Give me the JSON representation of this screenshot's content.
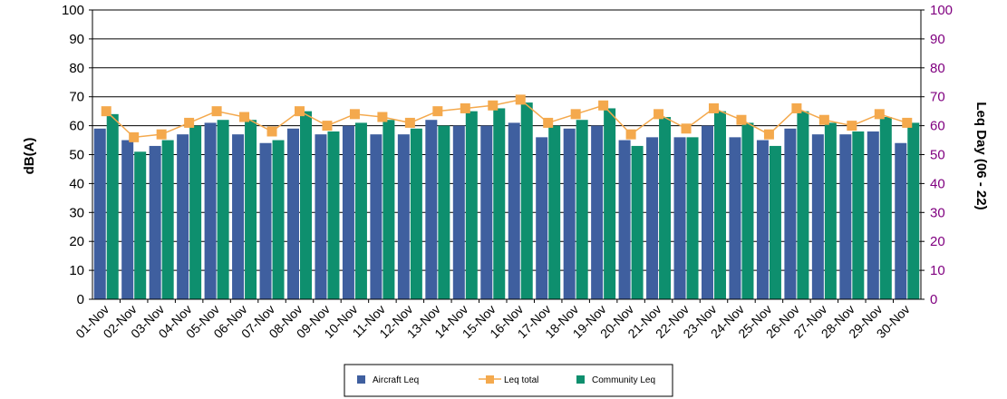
{
  "chart_data": {
    "type": "bar",
    "categories": [
      "01-Nov",
      "02-Nov",
      "03-Nov",
      "04-Nov",
      "05-Nov",
      "06-Nov",
      "07-Nov",
      "08-Nov",
      "09-Nov",
      "10-Nov",
      "11-Nov",
      "12-Nov",
      "13-Nov",
      "14-Nov",
      "15-Nov",
      "16-Nov",
      "17-Nov",
      "18-Nov",
      "19-Nov",
      "20-Nov",
      "21-Nov",
      "22-Nov",
      "23-Nov",
      "24-Nov",
      "25-Nov",
      "26-Nov",
      "27-Nov",
      "28-Nov",
      "29-Nov",
      "30-Nov"
    ],
    "series": [
      {
        "name": "Aircraft Leq",
        "kind": "bar",
        "color": "#3F5F9F",
        "values": [
          59,
          55,
          53,
          57,
          61,
          57,
          54,
          59,
          57,
          60,
          57,
          57,
          62,
          60,
          60,
          61,
          56,
          59,
          60,
          55,
          56,
          56,
          60,
          56,
          55,
          59,
          57,
          57,
          58,
          54
        ]
      },
      {
        "name": "Leq total",
        "kind": "line",
        "color": "#F4A94D",
        "values": [
          65,
          56,
          57,
          61,
          65,
          63,
          58,
          65,
          60,
          64,
          63,
          61,
          65,
          66,
          67,
          69,
          61,
          64,
          67,
          57,
          64,
          59,
          66,
          62,
          57,
          66,
          62,
          60,
          64,
          61
        ]
      },
      {
        "name": "Community Leq",
        "kind": "bar",
        "color": "#0E8F6E",
        "values": [
          64,
          51,
          55,
          60,
          62,
          62,
          55,
          65,
          58,
          61,
          62,
          59,
          60,
          65,
          66,
          68,
          60,
          62,
          66,
          53,
          63,
          56,
          65,
          61,
          53,
          65,
          61,
          58,
          63,
          61
        ]
      }
    ],
    "ylabel": "dB(A)",
    "y2label": "Leq Day (06 - 22)",
    "ylim": [
      0,
      100
    ],
    "y2lim": [
      0,
      100
    ],
    "yticks": [
      "0",
      "10",
      "20",
      "30",
      "40",
      "50",
      "60",
      "70",
      "80",
      "90",
      "100"
    ],
    "y2_color": "#800080",
    "grid": true,
    "legend_position": "bottom"
  }
}
